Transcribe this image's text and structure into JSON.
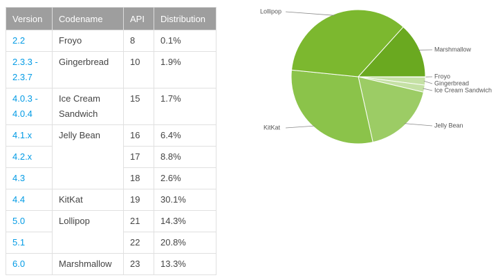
{
  "table": {
    "header": [
      "Version",
      "Codename",
      "API",
      "Distribution"
    ],
    "rows": [
      [
        "2.2",
        "Froyo",
        "8",
        "0.1%"
      ],
      [
        "2.3.3 - 2.3.7",
        "Gingerbread",
        "10",
        "1.9%"
      ],
      [
        "4.0.3 - 4.0.4",
        "Ice Cream Sandwich",
        "15",
        "1.7%"
      ],
      [
        "4.1.x",
        "Jelly Bean",
        "16",
        "6.4%"
      ],
      [
        "4.2.x",
        null,
        "17",
        "8.8%"
      ],
      [
        "4.3",
        null,
        "18",
        "2.6%"
      ],
      [
        "4.4",
        "KitKat",
        "19",
        "30.1%"
      ],
      [
        "5.0",
        "Lollipop",
        "21",
        "14.3%"
      ],
      [
        "5.1",
        null,
        "22",
        "20.8%"
      ],
      [
        "6.0",
        "Marshmallow",
        "23",
        "13.3%"
      ]
    ]
  },
  "chart_data": {
    "type": "pie",
    "categories": [
      "Froyo",
      "Gingerbread",
      "Ice Cream Sandwich",
      "Jelly Bean",
      "KitKat",
      "Lollipop",
      "Marshmallow"
    ],
    "values": [
      0.1,
      1.9,
      1.7,
      17.8,
      30.1,
      35.1,
      13.3
    ],
    "colors": [
      "#c5e1a5",
      "#c5e1a5",
      "#c5e1a5",
      "#9ccc65",
      "#8bc34a",
      "#7cb82f",
      "#6aa920"
    ]
  }
}
